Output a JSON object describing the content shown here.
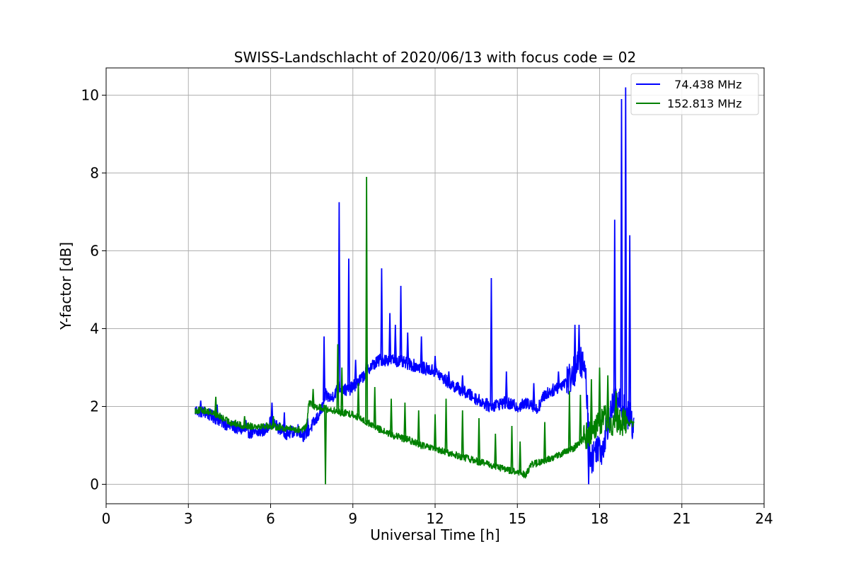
{
  "chart_data": {
    "type": "line",
    "title": "SWISS-Landschlacht of 2020/06/13 with focus code = 02",
    "xlabel": "Universal Time [h]",
    "ylabel": "Y-factor [dB]",
    "xlim": [
      0,
      24
    ],
    "ylim": [
      -0.5,
      10.7
    ],
    "xticks": [
      0,
      3,
      6,
      9,
      12,
      15,
      18,
      21,
      24
    ],
    "xtick_labels": [
      "0",
      "3",
      "6",
      "9",
      "12",
      "15",
      "18",
      "21",
      "24"
    ],
    "yticks": [
      0,
      2,
      4,
      6,
      8,
      10
    ],
    "ytick_labels": [
      "0",
      "2",
      "4",
      "6",
      "8",
      "10"
    ],
    "grid": true,
    "legend_position": "top-right",
    "series": [
      {
        "name": "  74.438 MHz",
        "color": "#0000ff",
        "points": [
          [
            3.25,
            1.9
          ],
          [
            3.6,
            1.85
          ],
          [
            4.0,
            1.7
          ],
          [
            4.5,
            1.5
          ],
          [
            5.0,
            1.4
          ],
          [
            5.4,
            1.3
          ],
          [
            5.8,
            1.4
          ],
          [
            6.0,
            1.6
          ],
          [
            6.2,
            1.5
          ],
          [
            6.6,
            1.3
          ],
          [
            7.0,
            1.4
          ],
          [
            7.2,
            1.25
          ],
          [
            7.4,
            1.4
          ],
          [
            7.7,
            1.7
          ],
          [
            7.9,
            2.0
          ],
          [
            8.0,
            2.3
          ],
          [
            8.2,
            2.2
          ],
          [
            8.5,
            2.5
          ],
          [
            8.8,
            2.4
          ],
          [
            9.0,
            2.5
          ],
          [
            9.3,
            2.7
          ],
          [
            9.6,
            3.0
          ],
          [
            10.0,
            3.2
          ],
          [
            10.5,
            3.2
          ],
          [
            11.0,
            3.1
          ],
          [
            11.5,
            3.0
          ],
          [
            12.0,
            2.9
          ],
          [
            12.5,
            2.6
          ],
          [
            13.0,
            2.4
          ],
          [
            13.5,
            2.2
          ],
          [
            14.0,
            2.0
          ],
          [
            14.5,
            2.1
          ],
          [
            15.0,
            2.0
          ],
          [
            15.5,
            2.1
          ],
          [
            15.7,
            1.9
          ],
          [
            16.0,
            2.3
          ],
          [
            16.5,
            2.5
          ],
          [
            17.0,
            2.8
          ],
          [
            17.3,
            3.2
          ],
          [
            17.5,
            2.8
          ],
          [
            17.6,
            1.3
          ],
          [
            17.7,
            0.6
          ],
          [
            17.9,
            1.0
          ],
          [
            18.1,
            0.9
          ],
          [
            18.3,
            1.6
          ],
          [
            18.6,
            2.2
          ],
          [
            18.8,
            2.0
          ],
          [
            19.0,
            1.8
          ],
          [
            19.25,
            1.5
          ]
        ],
        "spikes": [
          [
            3.45,
            2.15
          ],
          [
            4.05,
            2.05
          ],
          [
            5.1,
            1.65
          ],
          [
            6.05,
            2.1
          ],
          [
            6.5,
            1.85
          ],
          [
            7.35,
            1.7
          ],
          [
            7.95,
            3.8
          ],
          [
            8.5,
            7.25
          ],
          [
            8.85,
            5.8
          ],
          [
            9.1,
            3.2
          ],
          [
            9.5,
            3.6
          ],
          [
            10.05,
            5.55
          ],
          [
            10.35,
            4.4
          ],
          [
            10.55,
            4.1
          ],
          [
            10.75,
            5.1
          ],
          [
            11.0,
            3.9
          ],
          [
            11.5,
            3.8
          ],
          [
            12.0,
            3.3
          ],
          [
            12.5,
            2.9
          ],
          [
            13.0,
            2.8
          ],
          [
            14.05,
            5.3
          ],
          [
            14.6,
            2.9
          ],
          [
            15.6,
            2.6
          ],
          [
            16.5,
            2.9
          ],
          [
            17.1,
            4.1
          ],
          [
            17.25,
            4.1
          ],
          [
            17.6,
            0.0
          ],
          [
            18.55,
            6.8
          ],
          [
            18.8,
            9.9
          ],
          [
            18.95,
            10.2
          ],
          [
            19.1,
            6.4
          ]
        ]
      },
      {
        "name": "152.813 MHz",
        "color": "#008000",
        "points": [
          [
            3.25,
            1.9
          ],
          [
            3.6,
            1.9
          ],
          [
            4.0,
            1.8
          ],
          [
            4.5,
            1.6
          ],
          [
            5.0,
            1.5
          ],
          [
            5.5,
            1.5
          ],
          [
            6.0,
            1.5
          ],
          [
            6.5,
            1.45
          ],
          [
            7.0,
            1.4
          ],
          [
            7.3,
            1.45
          ],
          [
            7.4,
            2.1
          ],
          [
            7.6,
            2.0
          ],
          [
            8.0,
            1.95
          ],
          [
            8.5,
            1.85
          ],
          [
            9.0,
            1.8
          ],
          [
            9.5,
            1.6
          ],
          [
            10.0,
            1.4
          ],
          [
            10.5,
            1.25
          ],
          [
            11.0,
            1.15
          ],
          [
            11.5,
            1.0
          ],
          [
            12.0,
            0.9
          ],
          [
            12.5,
            0.8
          ],
          [
            13.0,
            0.7
          ],
          [
            13.5,
            0.6
          ],
          [
            14.0,
            0.5
          ],
          [
            14.5,
            0.4
          ],
          [
            15.0,
            0.3
          ],
          [
            15.3,
            0.25
          ],
          [
            15.5,
            0.5
          ],
          [
            16.0,
            0.6
          ],
          [
            16.5,
            0.75
          ],
          [
            17.0,
            0.9
          ],
          [
            17.3,
            1.1
          ],
          [
            17.6,
            1.3
          ],
          [
            17.9,
            1.6
          ],
          [
            18.2,
            1.7
          ],
          [
            18.5,
            1.6
          ],
          [
            18.8,
            1.6
          ],
          [
            19.0,
            1.6
          ],
          [
            19.25,
            1.55
          ]
        ],
        "spikes": [
          [
            4.0,
            2.25
          ],
          [
            5.05,
            1.75
          ],
          [
            6.1,
            1.75
          ],
          [
            7.55,
            2.45
          ],
          [
            8.0,
            0.0
          ],
          [
            8.45,
            3.6
          ],
          [
            8.6,
            3.0
          ],
          [
            9.2,
            2.6
          ],
          [
            9.5,
            7.9
          ],
          [
            9.8,
            2.5
          ],
          [
            10.4,
            2.2
          ],
          [
            10.9,
            2.1
          ],
          [
            11.4,
            1.9
          ],
          [
            12.0,
            1.8
          ],
          [
            12.4,
            2.2
          ],
          [
            13.0,
            1.9
          ],
          [
            13.6,
            1.7
          ],
          [
            14.2,
            1.3
          ],
          [
            14.8,
            1.5
          ],
          [
            15.1,
            1.1
          ],
          [
            16.0,
            1.6
          ],
          [
            16.9,
            2.4
          ],
          [
            17.3,
            2.3
          ],
          [
            17.7,
            2.7
          ],
          [
            18.0,
            3.0
          ],
          [
            18.3,
            2.8
          ],
          [
            18.6,
            2.4
          ]
        ]
      }
    ]
  }
}
